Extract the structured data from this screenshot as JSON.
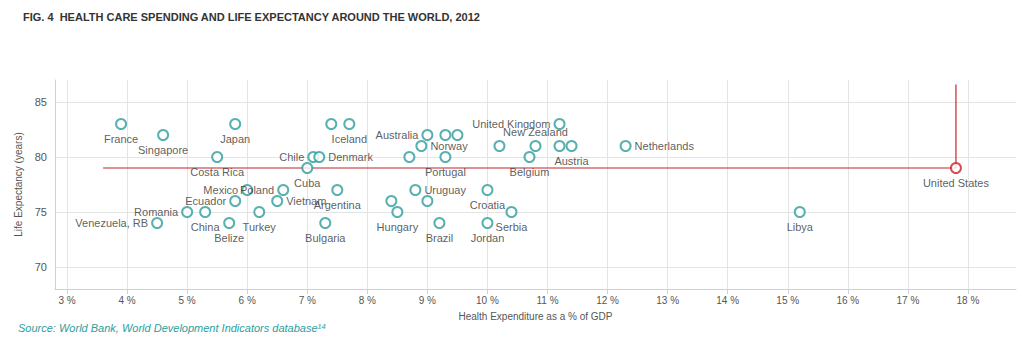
{
  "chart_data": {
    "type": "scatter",
    "title": "FIG. 4  HEALTH CARE SPENDING AND LIFE EXPECTANCY AROUND THE WORLD, 2012",
    "x_label": "Health Expenditure as a % of GDP",
    "y_label": "Life Expectancy (years)",
    "source": "Source: World Bank, World Development Indicators database¹⁴",
    "labels": [
      "France",
      "Singapore",
      "Japan",
      "Costa Rica",
      "Chile",
      "Denmark",
      "Cuba",
      null,
      "Iceland",
      "Mexico",
      "Ecuador",
      "Poland",
      "Vietnam",
      "Romania",
      "China",
      "Venezuela, RB",
      "Belize",
      "Turkey",
      "Bulgaria",
      "Argentina",
      "Uruguay",
      null,
      "Hungary",
      null,
      "Brazil",
      "Croatia",
      "Jordan",
      "Serbia",
      "Libya",
      "Australia",
      null,
      null,
      "Norway",
      null,
      "Portugal",
      "Belgium",
      null,
      "New Zealand",
      null,
      "Austria",
      "United Kingdom",
      "Netherlands",
      "United States"
    ],
    "x": [
      3.9,
      4.6,
      5.8,
      5.5,
      7.1,
      7.2,
      7.0,
      7.4,
      7.7,
      6.0,
      5.8,
      6.6,
      6.5,
      5.0,
      5.3,
      4.5,
      5.7,
      6.2,
      7.3,
      7.5,
      8.8,
      8.4,
      8.5,
      9.0,
      9.2,
      10.0,
      10.0,
      10.4,
      15.2,
      9.0,
      9.3,
      9.5,
      8.9,
      8.7,
      9.3,
      10.7,
      10.2,
      10.8,
      11.2,
      11.4,
      11.2,
      12.3,
      17.8
    ],
    "values": [
      83,
      82,
      83,
      80,
      80,
      80,
      79,
      83,
      83,
      77,
      76,
      77,
      76,
      75,
      75,
      74,
      74,
      75,
      74,
      77,
      77,
      76,
      75,
      76,
      74,
      77,
      74,
      75,
      75,
      82,
      82,
      82,
      81,
      80,
      80,
      80,
      81,
      81,
      81,
      81,
      83,
      81,
      79
    ],
    "colors": [
      "#2e9e9c",
      "#2e9e9c",
      "#2e9e9c",
      "#2e9e9c",
      "#2e9e9c",
      "#2e9e9c",
      "#2e9e9c",
      "#2e9e9c",
      "#2e9e9c",
      "#2e9e9c",
      "#2e9e9c",
      "#2e9e9c",
      "#2e9e9c",
      "#2e9e9c",
      "#2e9e9c",
      "#2e9e9c",
      "#2e9e9c",
      "#2e9e9c",
      "#2e9e9c",
      "#2e9e9c",
      "#2e9e9c",
      "#2e9e9c",
      "#2e9e9c",
      "#2e9e9c",
      "#2e9e9c",
      "#2e9e9c",
      "#2e9e9c",
      "#2e9e9c",
      "#2e9e9c",
      "#2e9e9c",
      "#2e9e9c",
      "#2e9e9c",
      "#2e9e9c",
      "#2e9e9c",
      "#2e9e9c",
      "#2e9e9c",
      "#2e9e9c",
      "#2e9e9c",
      "#2e9e9c",
      "#2e9e9c",
      "#2e9e9c",
      "#2e9e9c",
      "#c8232c"
    ],
    "marker": "circle",
    "reference_lines": [
      {
        "x": [
          3.6,
          17.8
        ],
        "y": [
          79,
          79
        ],
        "color": "#c8232c"
      },
      {
        "x": [
          17.8,
          17.8
        ],
        "y": [
          79,
          86.6
        ],
        "color": "#c8232c"
      }
    ],
    "xlim": [
      2.8,
      18.8
    ],
    "xticks": [
      {
        "value": 3,
        "label": "3 %"
      },
      {
        "value": 4,
        "label": "4 %"
      },
      {
        "value": 5,
        "label": "5 %"
      },
      {
        "value": 6,
        "label": "6 %"
      },
      {
        "value": 7,
        "label": "7 %"
      },
      {
        "value": 8,
        "label": "8 %"
      },
      {
        "value": 9,
        "label": "9 %"
      },
      {
        "value": 10,
        "label": "10 %"
      },
      {
        "value": 11,
        "label": "11 %"
      },
      {
        "value": 12,
        "label": "12 %"
      },
      {
        "value": 13,
        "label": "13 %"
      },
      {
        "value": 14,
        "label": "14 %"
      },
      {
        "value": 15,
        "label": "15 %"
      },
      {
        "value": 16,
        "label": "16 %"
      },
      {
        "value": 17,
        "label": "17 %"
      },
      {
        "value": 18,
        "label": "18 %"
      }
    ],
    "ylim": [
      68,
      87
    ],
    "yticks": [
      70,
      75,
      80,
      85
    ],
    "grid": true
  }
}
